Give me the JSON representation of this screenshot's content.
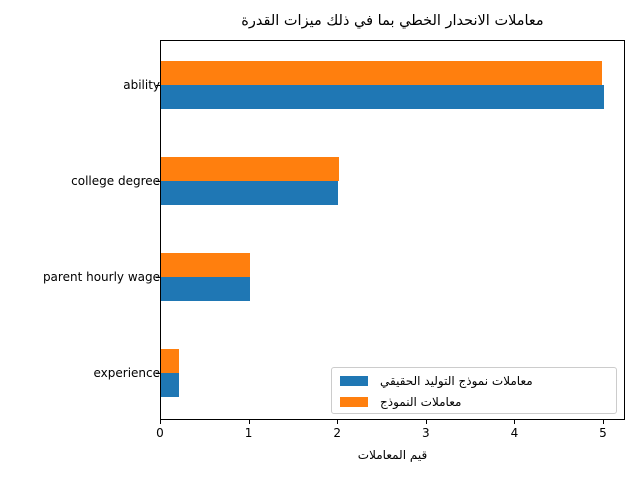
{
  "chart_data": {
    "type": "bar",
    "orientation": "horizontal",
    "title": "معاملات الانحدار الخطي بما في ذلك ميزات القدرة",
    "xlabel": "قيم المعاملات",
    "ylabel": "",
    "categories": [
      "ability",
      "college degree",
      "parent hourly wage",
      "experience"
    ],
    "series": [
      {
        "name": "معاملات نموذج التوليد الحقيقي",
        "color": "#1f77b4",
        "values": [
          5.0,
          2.0,
          1.0,
          0.2
        ]
      },
      {
        "name": "معاملات النموذج",
        "color": "#ff7f0e",
        "values": [
          4.98,
          2.01,
          1.0,
          0.2
        ]
      }
    ],
    "xlim": [
      0,
      5.25
    ],
    "xticks": [
      "0",
      "1",
      "2",
      "3",
      "4",
      "5"
    ],
    "grid": false,
    "legend_position": "lower right"
  },
  "title_visual": "ةردقلا تازيم كلذ يف امب يطخلا رادحنالا تالماعم",
  "xlabel_visual": "تالماعملا ميق",
  "legend_visual": [
    "يقيقحلا ديلوتلا جذومن تالماعم",
    "جذومنلا تالماعم"
  ]
}
